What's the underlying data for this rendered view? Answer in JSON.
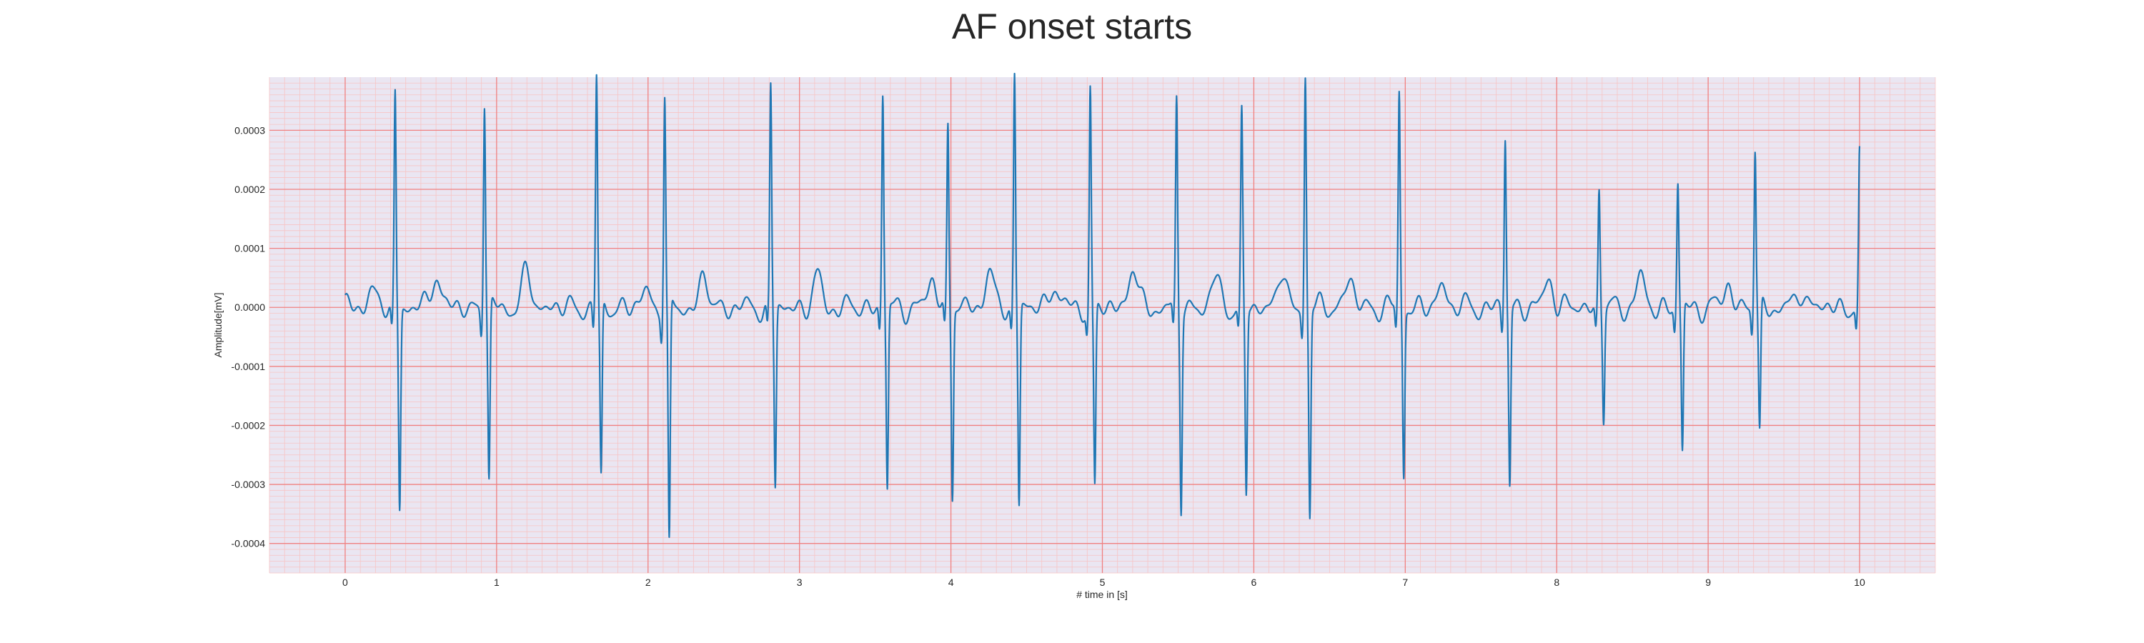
{
  "chart_data": {
    "type": "line",
    "title": "AF onset starts",
    "xlabel": "# time in [s]",
    "ylabel": "Amplitude[mV]",
    "xlim": [
      -0.5,
      10.5
    ],
    "ylim": [
      -0.00045,
      0.00039
    ],
    "x_ticks": [
      "0",
      "1",
      "2",
      "3",
      "4",
      "5",
      "6",
      "7",
      "8",
      "9",
      "10"
    ],
    "x_tick_values": [
      0,
      1,
      2,
      3,
      4,
      5,
      6,
      7,
      8,
      9,
      10
    ],
    "y_ticks": [
      "0.0003",
      "0.0002",
      "0.0001",
      "0.0000",
      "-0.0001",
      "-0.0002",
      "-0.0003",
      "-0.0004"
    ],
    "y_tick_values": [
      0.0003,
      0.0002,
      0.0001,
      0.0,
      -0.0001,
      -0.0002,
      -0.0003,
      -0.0004
    ],
    "grid": true,
    "colors": {
      "line": "#1f77b4",
      "major_grid": "#f08080",
      "minor_grid": "#f7c4c4",
      "plot_bg": "#eae6f2"
    },
    "series": [
      {
        "beats": [
          {
            "t": 0.33,
            "peak": 0.000323,
            "trough": -0.00034
          },
          {
            "t": 0.92,
            "peak": 0.000313,
            "trough": -0.0003
          },
          {
            "t": 1.66,
            "peak": 0.000351,
            "trough": -0.000298
          },
          {
            "t": 2.11,
            "peak": 0.000317,
            "trough": -0.000415
          },
          {
            "t": 2.81,
            "peak": 0.00033,
            "trough": -0.000305
          },
          {
            "t": 3.55,
            "peak": 0.000322,
            "trough": -0.000308
          },
          {
            "t": 3.98,
            "peak": 0.000264,
            "trough": -0.00032
          },
          {
            "t": 4.42,
            "peak": 0.000358,
            "trough": -0.000335
          },
          {
            "t": 4.92,
            "peak": 0.000327,
            "trough": -0.00031
          },
          {
            "t": 5.49,
            "peak": 0.000308,
            "trough": -0.000335
          },
          {
            "t": 5.92,
            "peak": 0.00028,
            "trough": -0.00032
          },
          {
            "t": 6.34,
            "peak": 0.000358,
            "trough": -0.000355
          },
          {
            "t": 6.96,
            "peak": 0.000322,
            "trough": -0.00028
          },
          {
            "t": 7.66,
            "peak": 0.00025,
            "trough": -0.0003
          },
          {
            "t": 8.28,
            "peak": 0.00016,
            "trough": -0.000185
          },
          {
            "t": 8.8,
            "peak": 0.00017,
            "trough": -0.00025
          },
          {
            "t": 9.31,
            "peak": 0.00023,
            "trough": -0.00022
          },
          {
            "t": 10.0,
            "peak": 0.000212,
            "trough": -2.5e-05
          }
        ],
        "baseline_waves": [
          {
            "t": 0.17,
            "v": 3e-05
          },
          {
            "t": 0.6,
            "v": 6e-05
          },
          {
            "t": 1.2,
            "v": 6e-05
          },
          {
            "t": 1.99,
            "v": 3e-05
          },
          {
            "t": 2.37,
            "v": 5e-05
          },
          {
            "t": 3.12,
            "v": 5e-05
          },
          {
            "t": 3.88,
            "v": 5e-05
          },
          {
            "t": 4.25,
            "v": 6e-05
          },
          {
            "t": 4.68,
            "v": 4e-05
          },
          {
            "t": 5.2,
            "v": 7e-05
          },
          {
            "t": 5.75,
            "v": 5e-05
          },
          {
            "t": 6.18,
            "v": 6e-05
          },
          {
            "t": 6.63,
            "v": 5e-05
          },
          {
            "t": 7.25,
            "v": 4e-05
          },
          {
            "t": 7.95,
            "v": 5e-05
          },
          {
            "t": 8.55,
            "v": 5e-05
          },
          {
            "t": 9.13,
            "v": 4e-05
          },
          {
            "t": 9.62,
            "v": 3e-05
          }
        ]
      }
    ]
  }
}
